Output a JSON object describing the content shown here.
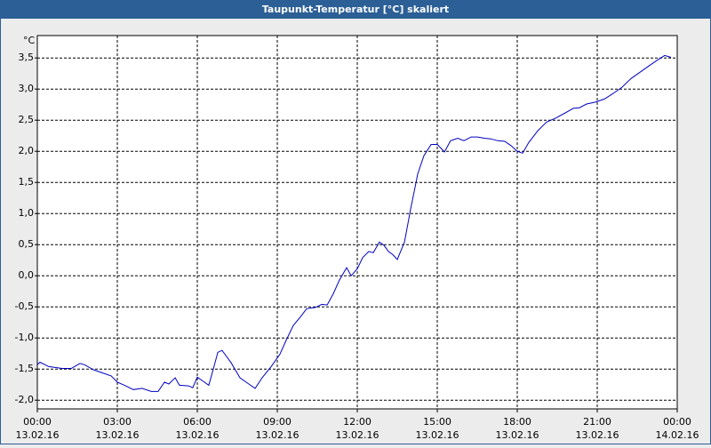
{
  "chart_data": {
    "type": "line",
    "title": "Taupunkt-Temperatur [°C] skaliert",
    "y_unit": "°C",
    "x": [
      0,
      0.1,
      0.43,
      0.93,
      1.27,
      1.6,
      1.77,
      2.1,
      2.43,
      2.77,
      3.0,
      3.27,
      3.6,
      3.93,
      4.27,
      4.53,
      4.77,
      4.93,
      5.17,
      5.33,
      5.67,
      5.83,
      6.0,
      6.2,
      6.43,
      6.6,
      6.77,
      6.93,
      7.27,
      7.6,
      7.93,
      8.17,
      8.43,
      8.77,
      9.1,
      9.33,
      9.6,
      9.87,
      10.1,
      10.43,
      10.67,
      10.87,
      11.1,
      11.33,
      11.6,
      11.77,
      12.0,
      12.2,
      12.43,
      12.6,
      12.83,
      13.0,
      13.17,
      13.33,
      13.5,
      13.77,
      14.0,
      14.27,
      14.5,
      14.77,
      15.0,
      15.27,
      15.5,
      15.77,
      16.0,
      16.27,
      16.5,
      16.77,
      17.0,
      17.27,
      17.53,
      17.77,
      18.0,
      18.2,
      18.43,
      18.77,
      19.1,
      19.43,
      19.77,
      20.1,
      20.33,
      20.6,
      20.93,
      21.27,
      21.6,
      21.93,
      22.27,
      22.6,
      22.93,
      23.27,
      23.53,
      23.77
    ],
    "series": [
      {
        "name": "Taupunkt",
        "color": "#0000c0",
        "values": [
          -1.43,
          -1.39,
          -1.46,
          -1.49,
          -1.49,
          -1.41,
          -1.43,
          -1.51,
          -1.56,
          -1.61,
          -1.71,
          -1.76,
          -1.83,
          -1.81,
          -1.86,
          -1.86,
          -1.71,
          -1.74,
          -1.64,
          -1.76,
          -1.77,
          -1.8,
          -1.63,
          -1.69,
          -1.76,
          -1.5,
          -1.23,
          -1.2,
          -1.4,
          -1.64,
          -1.74,
          -1.81,
          -1.64,
          -1.46,
          -1.26,
          -1.04,
          -0.8,
          -0.66,
          -0.53,
          -0.51,
          -0.46,
          -0.47,
          -0.29,
          -0.07,
          0.13,
          0.0,
          0.11,
          0.29,
          0.39,
          0.37,
          0.54,
          0.49,
          0.39,
          0.34,
          0.26,
          0.54,
          1.07,
          1.64,
          1.93,
          2.11,
          2.11,
          1.99,
          2.17,
          2.21,
          2.17,
          2.23,
          2.23,
          2.21,
          2.2,
          2.17,
          2.16,
          2.09,
          2.0,
          1.97,
          2.14,
          2.33,
          2.47,
          2.53,
          2.61,
          2.69,
          2.7,
          2.76,
          2.79,
          2.84,
          2.93,
          3.03,
          3.17,
          3.27,
          3.37,
          3.47,
          3.54,
          3.51
        ]
      }
    ],
    "xlim": [
      0,
      24
    ],
    "xticks": [
      {
        "value": 0,
        "label": "00:00"
      },
      {
        "value": 3,
        "label": "03:00"
      },
      {
        "value": 6,
        "label": "06:00"
      },
      {
        "value": 9,
        "label": "09:00"
      },
      {
        "value": 12,
        "label": "12:00"
      },
      {
        "value": 15,
        "label": "15:00"
      },
      {
        "value": 18,
        "label": "18:00"
      },
      {
        "value": 21,
        "label": "21:00"
      },
      {
        "value": 24,
        "label": "00:00"
      }
    ],
    "xtick_dates": [
      "13.02.16",
      "13.02.16",
      "13.02.16",
      "13.02.16",
      "13.02.16",
      "13.02.16",
      "13.02.16",
      "13.02.16",
      "14.02.16"
    ],
    "ylim": [
      -2.14,
      3.86
    ],
    "yticks": [
      {
        "value": -2,
        "label": "-2,0"
      },
      {
        "value": -1.5,
        "label": "-1,5"
      },
      {
        "value": -1,
        "label": "-1,0"
      },
      {
        "value": -0.5,
        "label": "-0,5"
      },
      {
        "value": 0,
        "label": "0,0"
      },
      {
        "value": 0.5,
        "label": "0,5"
      },
      {
        "value": 1,
        "label": "1,0"
      },
      {
        "value": 1.5,
        "label": "1,5"
      },
      {
        "value": 2,
        "label": "2,0"
      },
      {
        "value": 2.5,
        "label": "2,5"
      },
      {
        "value": 3,
        "label": "3,0"
      },
      {
        "value": 3.5,
        "label": "3,5"
      }
    ],
    "grid": true
  }
}
